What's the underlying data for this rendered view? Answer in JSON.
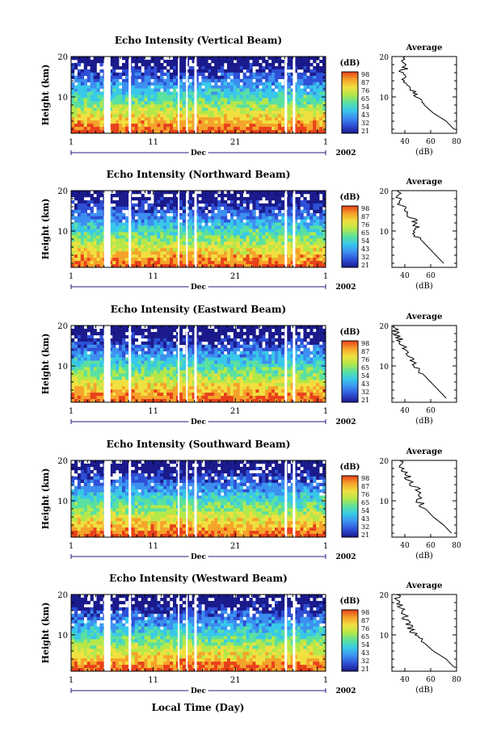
{
  "panels": [
    {
      "title": "Echo Intensity (Vertical Beam)",
      "avg_title": "Average",
      "avg_xticks": [
        "40",
        "60",
        "80"
      ],
      "avg_xlabel": "(dB)"
    },
    {
      "title": "Echo Intensity (Northward Beam)",
      "avg_title": "Average",
      "avg_xticks": [
        "40",
        "60"
      ],
      "avg_xlabel": "(dB)"
    },
    {
      "title": "Echo Intensity (Eastward Beam)",
      "avg_title": "Average",
      "avg_xticks": [
        "40",
        "60"
      ],
      "avg_xlabel": "(dB)"
    },
    {
      "title": "Echo Intensity (Southward Beam)",
      "avg_title": "Average",
      "avg_xticks": [
        "40",
        "60",
        "80"
      ],
      "avg_xlabel": "(dB)"
    },
    {
      "title": "Echo Intensity (Westward Beam)",
      "avg_title": "Average",
      "avg_xticks": [
        "40",
        "60",
        "80"
      ],
      "avg_xlabel": "(dB)"
    }
  ],
  "ylabel": "Height (km)",
  "yticks": [
    "10",
    "20"
  ],
  "xticks": [
    "1",
    "11",
    "21",
    "1"
  ],
  "month_label": "Dec",
  "year_label": "2002",
  "xlabel": "Local Time (Day)",
  "colorbar": {
    "unit": "(dB)",
    "ticks": [
      "98",
      "87",
      "76",
      "65",
      "54",
      "43",
      "32",
      "21"
    ],
    "colors": [
      "#1a1a8c",
      "#2e4fd6",
      "#3c8ff0",
      "#38c8ea",
      "#5ae0a0",
      "#b4e84a",
      "#f0e040",
      "#f5a22a",
      "#e8401a"
    ]
  },
  "chart_data": [
    {
      "type": "heatmap",
      "title": "Echo Intensity (Vertical Beam)",
      "xlabel": "Local Time (Day)",
      "ylabel": "Height (km)",
      "x_range": [
        "1 Dec 2002",
        "1 Jan 2003"
      ],
      "y_range_km": [
        1,
        20
      ],
      "color_unit": "dB",
      "color_range": [
        21,
        98
      ],
      "data_gaps_day": [
        [
          5,
          5.8
        ],
        [
          8,
          8.3
        ],
        [
          14,
          14.2
        ],
        [
          15,
          15.2
        ],
        [
          16,
          16.3
        ],
        [
          27,
          27.3
        ],
        [
          28,
          28.3
        ]
      ],
      "average_profile": {
        "height_km": [
          2,
          4,
          6,
          8,
          10,
          12,
          14,
          16,
          18,
          20
        ],
        "db": [
          78,
          72,
          62,
          55,
          50,
          44,
          40,
          38,
          41,
          40
        ]
      }
    },
    {
      "type": "heatmap",
      "title": "Echo Intensity (Northward Beam)",
      "x_range": [
        "1 Dec 2002",
        "1 Jan 2003"
      ],
      "y_range_km": [
        1,
        20
      ],
      "color_range": [
        21,
        98
      ],
      "average_profile": {
        "height_km": [
          2,
          4,
          6,
          8,
          10,
          12,
          14,
          16,
          18,
          20
        ],
        "db": [
          70,
          64,
          58,
          52,
          46,
          50,
          42,
          38,
          36,
          34
        ]
      }
    },
    {
      "type": "heatmap",
      "title": "Echo Intensity (Eastward Beam)",
      "x_range": [
        "1 Dec 2002",
        "1 Jan 2003"
      ],
      "y_range_km": [
        1,
        20
      ],
      "color_range": [
        21,
        98
      ],
      "average_profile": {
        "height_km": [
          2,
          4,
          6,
          8,
          10,
          12,
          14,
          16,
          18,
          20
        ],
        "db": [
          72,
          66,
          60,
          54,
          48,
          44,
          40,
          37,
          34,
          32
        ]
      }
    },
    {
      "type": "heatmap",
      "title": "Echo Intensity (Southward Beam)",
      "x_range": [
        "1 Dec 2002",
        "1 Jan 2003"
      ],
      "y_range_km": [
        1,
        20
      ],
      "color_range": [
        21,
        98
      ],
      "average_profile": {
        "height_km": [
          2,
          4,
          6,
          8,
          10,
          12,
          14,
          16,
          18,
          20
        ],
        "db": [
          76,
          70,
          62,
          56,
          50,
          52,
          46,
          42,
          38,
          36
        ]
      }
    },
    {
      "type": "heatmap",
      "title": "Echo Intensity (Westward Beam)",
      "x_range": [
        "1 Dec 2002",
        "1 Jan 2003"
      ],
      "y_range_km": [
        1,
        20
      ],
      "color_range": [
        21,
        98
      ],
      "average_profile": {
        "height_km": [
          2,
          4,
          6,
          8,
          10,
          12,
          14,
          16,
          18,
          20
        ],
        "db": [
          78,
          72,
          62,
          55,
          48,
          44,
          40,
          38,
          36,
          34
        ]
      }
    }
  ]
}
